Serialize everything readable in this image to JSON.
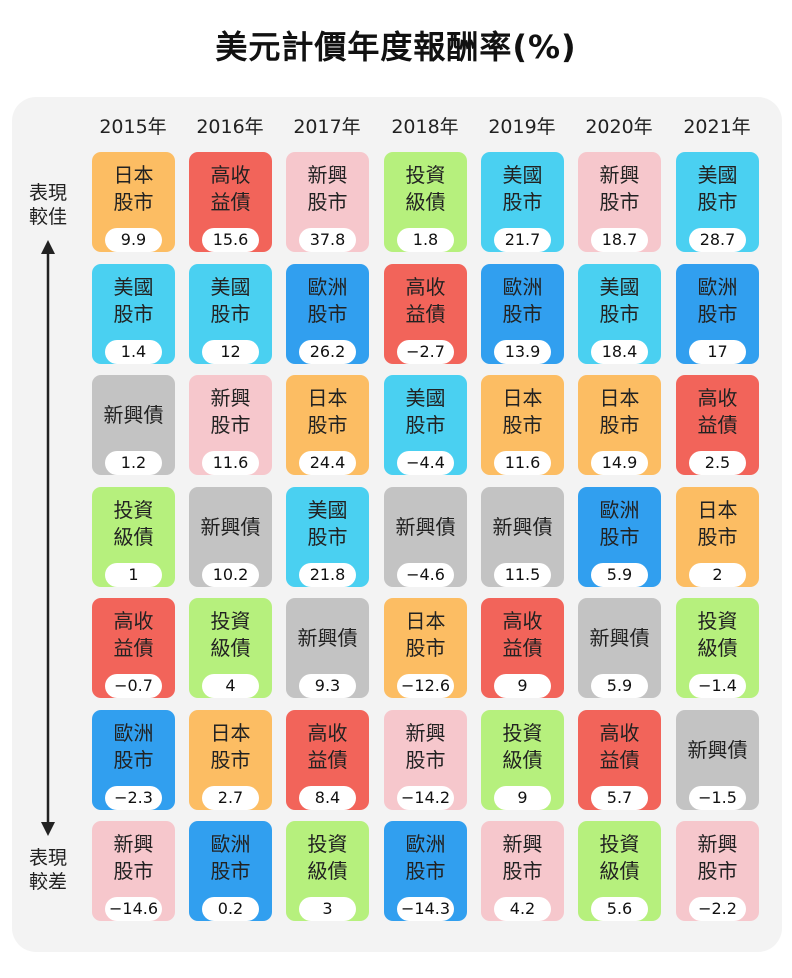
{
  "title": "美元計價年度報酬率(%)",
  "side_labels": {
    "top": "表現\n較佳",
    "bottom": "表現\n較差"
  },
  "categories": {
    "japan": {
      "label": "日本\n股市",
      "color": "#fcbd63"
    },
    "hy": {
      "label": "高收\n益債",
      "color": "#f2645a"
    },
    "em": {
      "label": "新興\n股市",
      "color": "#f6c7cc"
    },
    "ig": {
      "label": "投資\n級債",
      "color": "#b6f07d"
    },
    "us": {
      "label": "美國\n股市",
      "color": "#4ad0f1"
    },
    "eu": {
      "label": "歐洲\n股市",
      "color": "#319fef"
    },
    "emd": {
      "label": "新興債",
      "color": "#c3c3c3"
    }
  },
  "chart_data": {
    "type": "table",
    "title": "美元計價年度報酬率(%)",
    "years": [
      "2015年",
      "2016年",
      "2017年",
      "2018年",
      "2019年",
      "2020年",
      "2021年"
    ],
    "columns": [
      [
        {
          "cat": "japan",
          "value": "9.9"
        },
        {
          "cat": "us",
          "value": "1.4"
        },
        {
          "cat": "emd",
          "value": "1.2"
        },
        {
          "cat": "ig",
          "value": "1"
        },
        {
          "cat": "hy",
          "value": "−0.7"
        },
        {
          "cat": "eu",
          "value": "−2.3"
        },
        {
          "cat": "em",
          "value": "−14.6"
        }
      ],
      [
        {
          "cat": "hy",
          "value": "15.6"
        },
        {
          "cat": "us",
          "value": "12"
        },
        {
          "cat": "em",
          "value": "11.6"
        },
        {
          "cat": "emd",
          "value": "10.2"
        },
        {
          "cat": "ig",
          "value": "4"
        },
        {
          "cat": "japan",
          "value": "2.7"
        },
        {
          "cat": "eu",
          "value": "0.2"
        }
      ],
      [
        {
          "cat": "em",
          "value": "37.8"
        },
        {
          "cat": "eu",
          "value": "26.2"
        },
        {
          "cat": "japan",
          "value": "24.4"
        },
        {
          "cat": "us",
          "value": "21.8"
        },
        {
          "cat": "emd",
          "value": "9.3"
        },
        {
          "cat": "hy",
          "value": "8.4"
        },
        {
          "cat": "ig",
          "value": "3"
        }
      ],
      [
        {
          "cat": "ig",
          "value": "1.8"
        },
        {
          "cat": "hy",
          "value": "−2.7"
        },
        {
          "cat": "us",
          "value": "−4.4"
        },
        {
          "cat": "emd",
          "value": "−4.6"
        },
        {
          "cat": "japan",
          "value": "−12.6"
        },
        {
          "cat": "em",
          "value": "−14.2"
        },
        {
          "cat": "eu",
          "value": "−14.3"
        }
      ],
      [
        {
          "cat": "us",
          "value": "21.7"
        },
        {
          "cat": "eu",
          "value": "13.9"
        },
        {
          "cat": "japan",
          "value": "11.6"
        },
        {
          "cat": "emd",
          "value": "11.5"
        },
        {
          "cat": "hy",
          "value": "9"
        },
        {
          "cat": "ig",
          "value": "9"
        },
        {
          "cat": "em",
          "value": "4.2"
        }
      ],
      [
        {
          "cat": "em",
          "value": "18.7"
        },
        {
          "cat": "us",
          "value": "18.4"
        },
        {
          "cat": "japan",
          "value": "14.9"
        },
        {
          "cat": "eu",
          "value": "5.9"
        },
        {
          "cat": "emd",
          "value": "5.9"
        },
        {
          "cat": "hy",
          "value": "5.7"
        },
        {
          "cat": "ig",
          "value": "5.6"
        }
      ],
      [
        {
          "cat": "us",
          "value": "28.7"
        },
        {
          "cat": "eu",
          "value": "17"
        },
        {
          "cat": "hy",
          "value": "2.5"
        },
        {
          "cat": "japan",
          "value": "2"
        },
        {
          "cat": "ig",
          "value": "−1.4"
        },
        {
          "cat": "emd",
          "value": "−1.5"
        },
        {
          "cat": "em",
          "value": "−2.2"
        }
      ]
    ]
  }
}
